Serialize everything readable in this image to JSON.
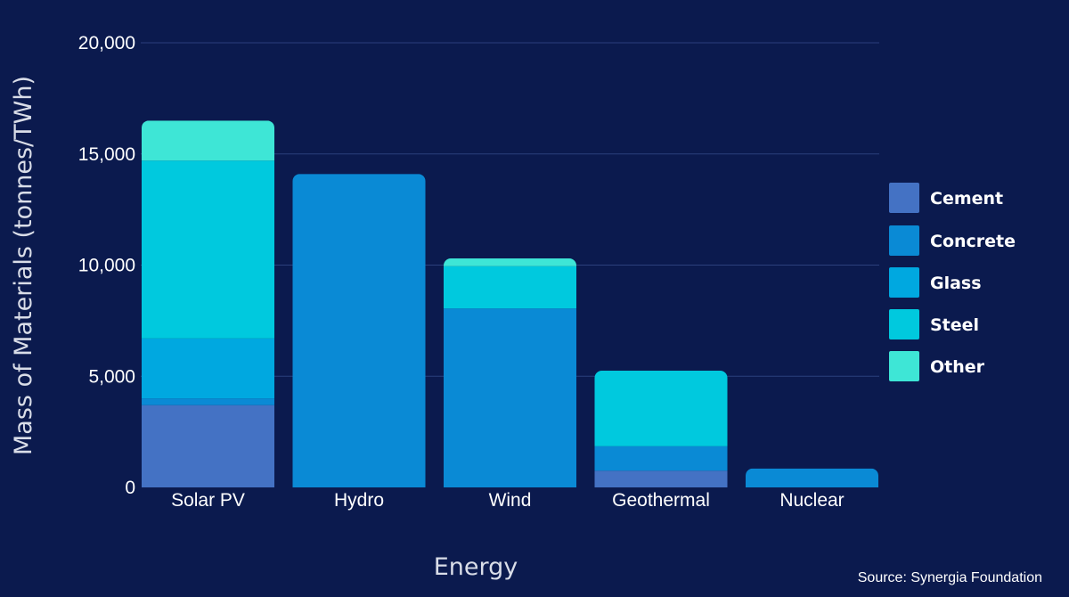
{
  "chart_data": {
    "type": "bar",
    "stacked": true,
    "categories": [
      "Solar PV",
      "Hydro",
      "Wind",
      "Geothermal",
      "Nuclear"
    ],
    "series": [
      {
        "name": "Cement",
        "color": "#4472c4",
        "values": [
          3700,
          0,
          0,
          750,
          0
        ]
      },
      {
        "name": "Concrete",
        "color": "#0a8ad5",
        "values": [
          300,
          14100,
          8050,
          1100,
          850
        ]
      },
      {
        "name": "Glass",
        "color": "#00a8e0",
        "values": [
          2700,
          0,
          0,
          0,
          0
        ]
      },
      {
        "name": "Steel",
        "color": "#00c9de",
        "values": [
          8000,
          0,
          1900,
          3400,
          0
        ]
      },
      {
        "name": "Other",
        "color": "#3ee6d6",
        "values": [
          1800,
          0,
          350,
          0,
          0
        ]
      }
    ],
    "xlabel": "Energy",
    "ylabel": "Mass of Materials (tonnes/TWh)",
    "ylim": [
      0,
      20000
    ],
    "yticks": [
      0,
      5000,
      10000,
      15000,
      20000
    ],
    "ytick_labels": [
      "0",
      "5,000",
      "10,000",
      "15,000",
      "20,000"
    ],
    "grid": true,
    "legend_position": "right"
  },
  "source": "Source: Synergia Foundation"
}
